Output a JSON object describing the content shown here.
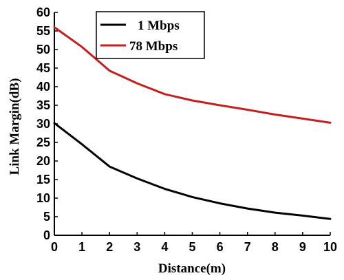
{
  "chart_data": {
    "type": "line",
    "xlabel": "Distance(m)",
    "ylabel": "Link Margin(dB)",
    "xlim": [
      0,
      10
    ],
    "ylim": [
      0,
      60
    ],
    "x_ticks": [
      "0",
      "1",
      "2",
      "3",
      "4",
      "5",
      "6",
      "7",
      "8",
      "9",
      "10"
    ],
    "y_ticks": [
      "0",
      "5",
      "10",
      "15",
      "20",
      "25",
      "30",
      "35",
      "40",
      "45",
      "50",
      "55",
      "60"
    ],
    "grid": false,
    "legend_position": "top-left",
    "series": [
      {
        "name": "1 Mbps",
        "color": "#000000",
        "x": [
          0,
          1,
          2,
          3,
          4,
          5,
          6,
          7,
          8,
          9,
          10
        ],
        "values": [
          30.2,
          24.5,
          18.5,
          15.3,
          12.5,
          10.3,
          8.6,
          7.2,
          6.1,
          5.3,
          4.4
        ]
      },
      {
        "name": "78 Mbps",
        "color": "#c41e1e",
        "x": [
          0,
          1,
          2,
          3,
          4,
          5,
          6,
          7,
          8,
          9,
          10
        ],
        "values": [
          56.0,
          50.7,
          44.3,
          40.9,
          38.0,
          36.3,
          35.0,
          33.8,
          32.5,
          31.4,
          30.3
        ]
      }
    ]
  }
}
